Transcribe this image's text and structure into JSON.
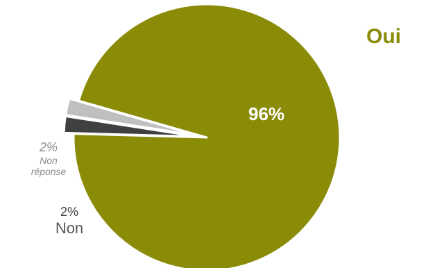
{
  "chart_data": {
    "type": "pie",
    "title": "",
    "slices": [
      {
        "label": "Oui",
        "value": 96,
        "value_label": "96%",
        "color": "#8a8c08",
        "label_color": "#8a8c08",
        "value_label_color": "#ffffff"
      },
      {
        "label": "Non\nréponse",
        "value": 2,
        "value_label": "2%",
        "color": "#404040",
        "label_color": "#8c8c8c",
        "value_label_color": "#8c8c8c",
        "exploded": true
      },
      {
        "label": "Non",
        "value": 2,
        "value_label": "2%",
        "color": "#bfbfbf",
        "label_color": "#595959",
        "value_label_color": "#404040",
        "exploded": true
      }
    ],
    "legend": "none",
    "grid": false
  },
  "labels": {
    "oui_name": "Oui",
    "oui_pct": "96%",
    "non_reponse_pct": "2%",
    "non_reponse_line1": "Non",
    "non_reponse_line2": "réponse",
    "non_pct": "2%",
    "non_name": "Non"
  }
}
